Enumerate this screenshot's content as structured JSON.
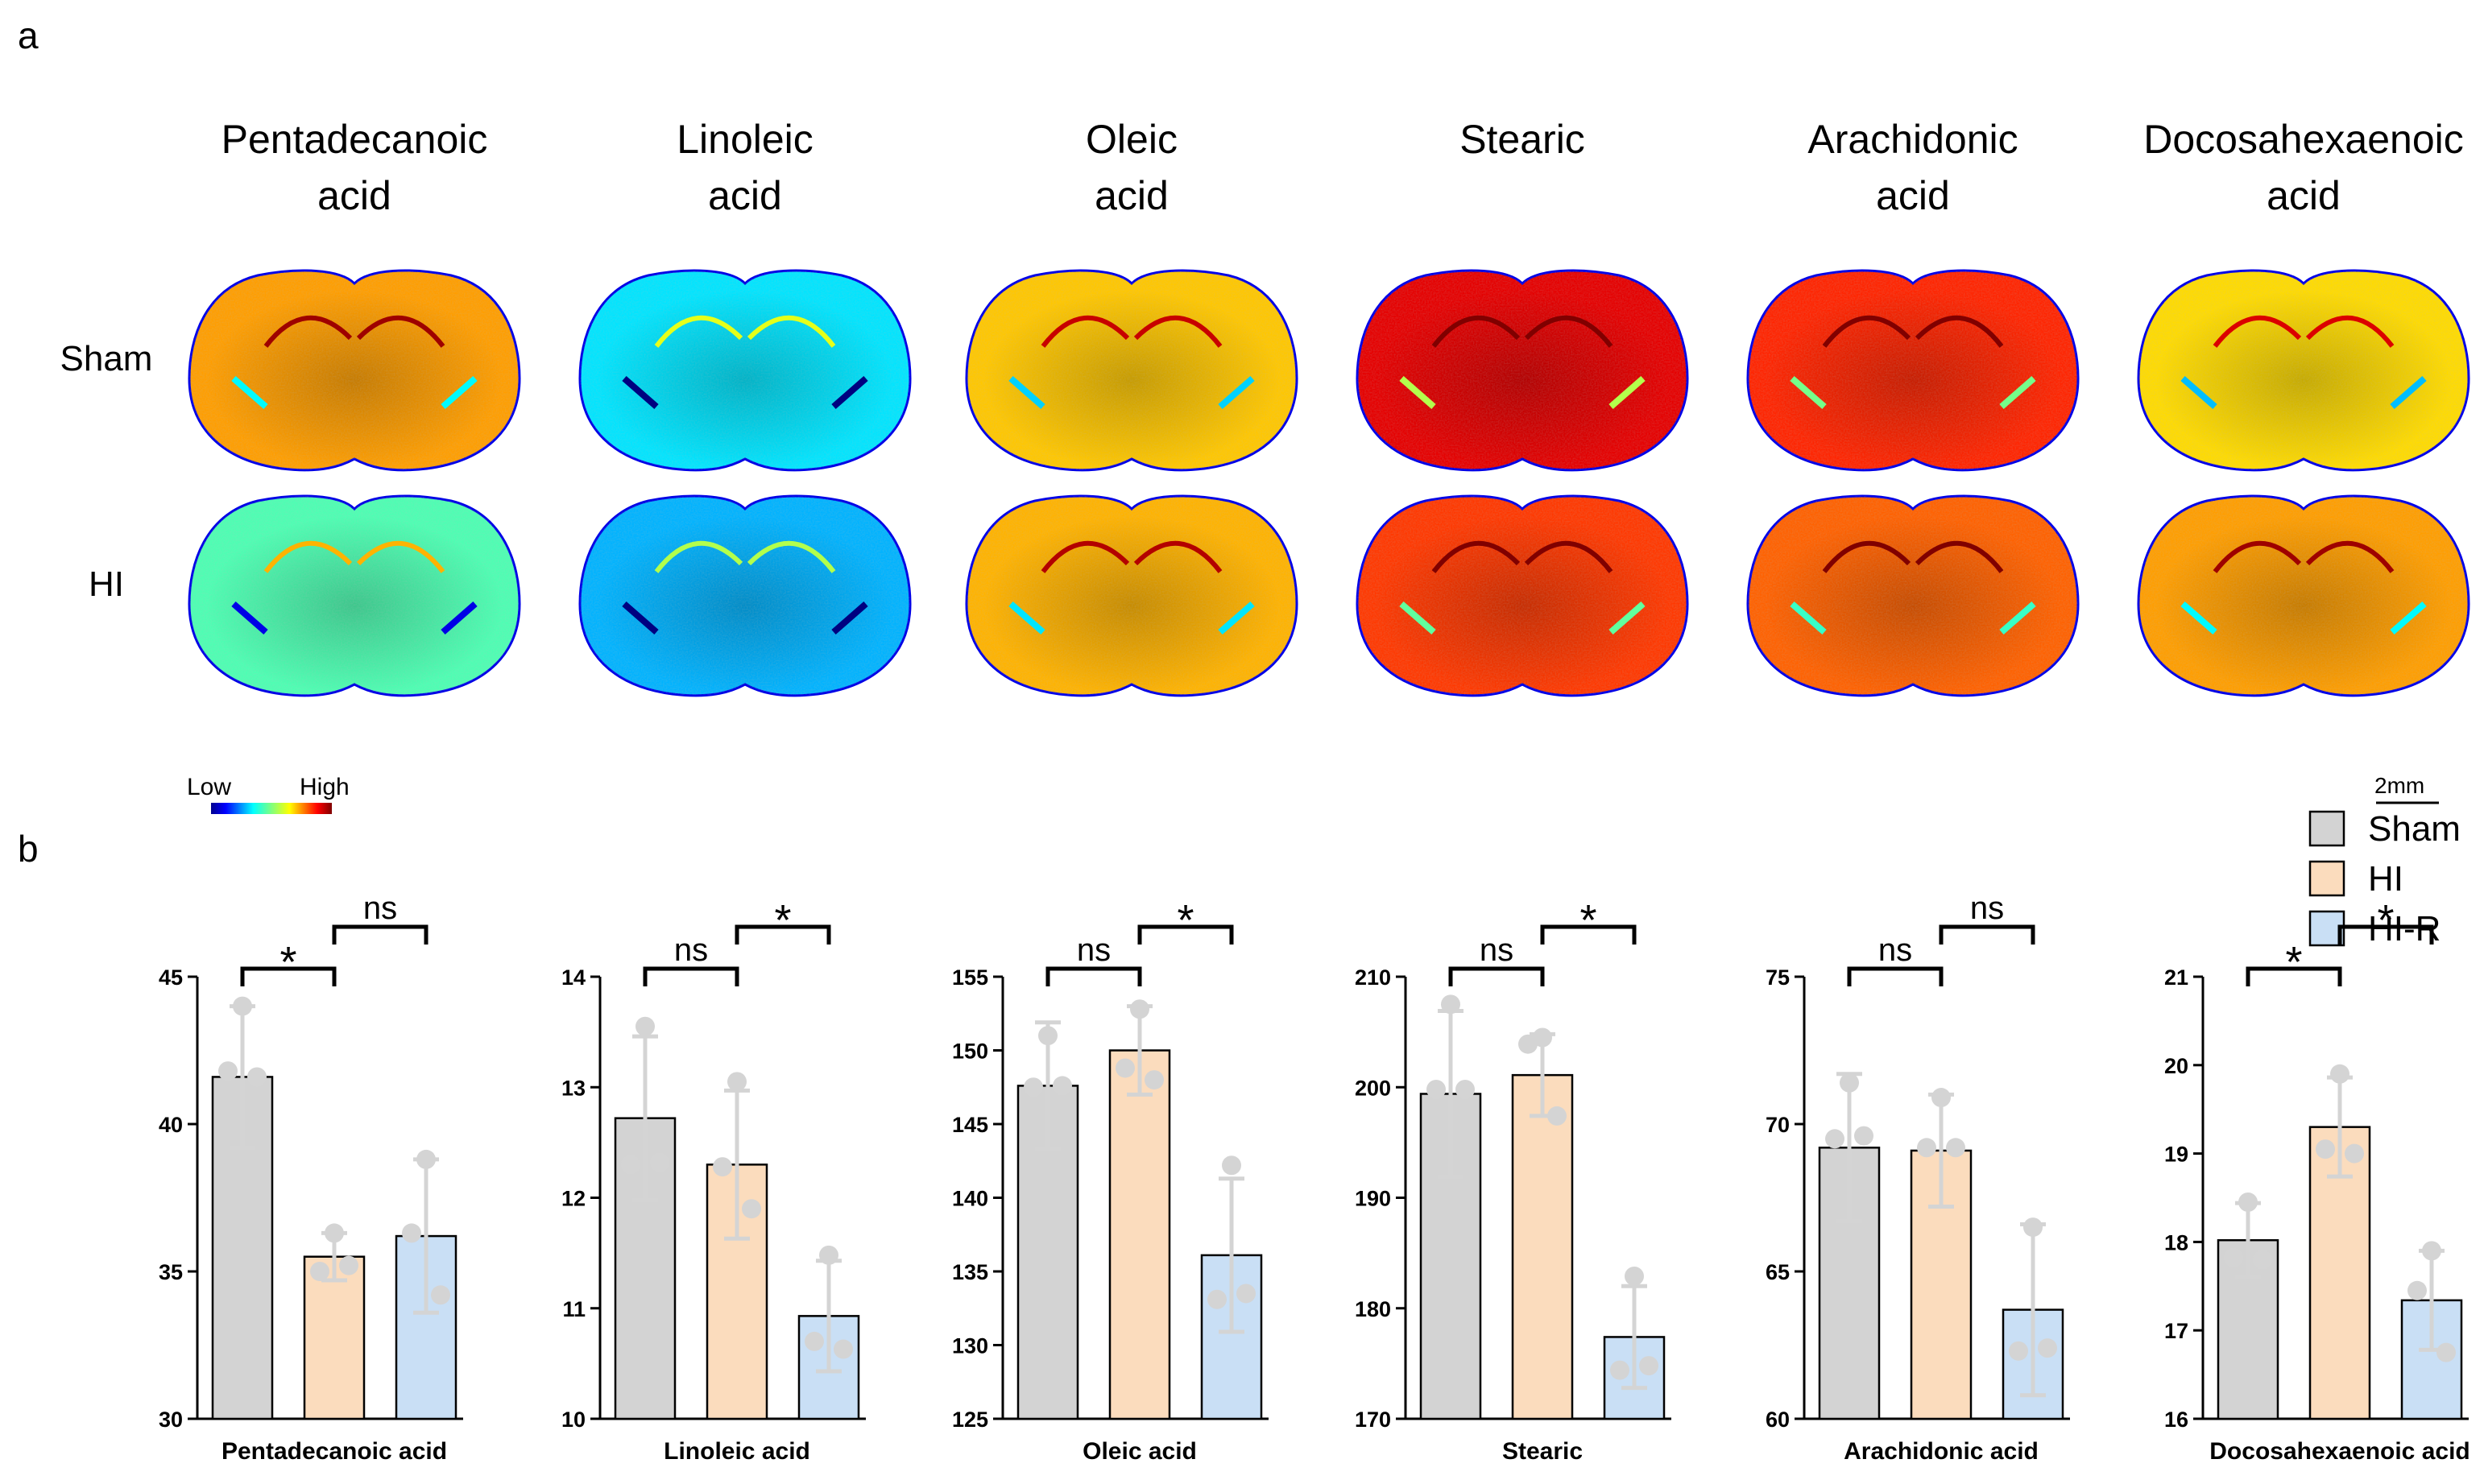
{
  "panel_labels": {
    "a": "a",
    "b": "b"
  },
  "imaging": {
    "columns": [
      {
        "line1": "Pentadecanoic",
        "line2": "acid"
      },
      {
        "line1": "Linoleic",
        "line2": "acid"
      },
      {
        "line1": "Oleic",
        "line2": "acid"
      },
      {
        "line1": "Stearic",
        "line2": ""
      },
      {
        "line1": "Arachidonic",
        "line2": "acid"
      },
      {
        "line1": "Docosahexaenoic",
        "line2": "acid"
      }
    ],
    "rows": [
      "Sham",
      "HI"
    ],
    "colorbar": {
      "low": "Low",
      "high": "High"
    },
    "scale_bar": "2mm",
    "intensity": {
      "Sham": [
        0.72,
        0.35,
        0.68,
        0.9,
        0.84,
        0.66
      ],
      "HI": [
        0.45,
        0.3,
        0.7,
        0.82,
        0.78,
        0.72
      ]
    }
  },
  "legend": [
    {
      "name": "Sham",
      "color": "#d3d3d3"
    },
    {
      "name": "HI",
      "color": "#fbdcbd"
    },
    {
      "name": "HI-R",
      "color": "#c9dff5"
    }
  ],
  "chart_data": [
    {
      "type": "bar",
      "xlabel": "Pentadecanoic acid",
      "ylim": [
        30,
        45
      ],
      "yticks": [
        30,
        35,
        40,
        45
      ],
      "categories": [
        "Sham",
        "HI",
        "HI-R"
      ],
      "values": [
        41.6,
        35.5,
        36.2
      ],
      "sd": [
        2.4,
        0.8,
        2.6
      ],
      "points": [
        [
          44.0,
          41.8,
          41.6
        ],
        [
          36.3,
          35.0,
          35.2
        ],
        [
          38.8,
          36.3,
          34.2
        ]
      ],
      "significance": [
        {
          "pair": [
            0,
            1
          ],
          "label": "*"
        },
        {
          "pair": [
            1,
            2
          ],
          "label": "ns"
        }
      ]
    },
    {
      "type": "bar",
      "xlabel": "Linoleic acid",
      "ylim": [
        10,
        14
      ],
      "yticks": [
        10,
        11,
        12,
        13,
        14
      ],
      "categories": [
        "Sham",
        "HI",
        "HI-R"
      ],
      "values": [
        12.72,
        12.3,
        10.93
      ],
      "sd": [
        0.74,
        0.67,
        0.5
      ],
      "points": [
        [
          13.55,
          12.3,
          12.32
        ],
        [
          13.05,
          12.28,
          11.9
        ],
        [
          11.48,
          10.7,
          10.63
        ]
      ],
      "significance": [
        {
          "pair": [
            0,
            1
          ],
          "label": "ns"
        },
        {
          "pair": [
            1,
            2
          ],
          "label": "*"
        }
      ]
    },
    {
      "type": "bar",
      "xlabel": "Oleic acid",
      "ylim": [
        125,
        155
      ],
      "yticks": [
        125,
        130,
        135,
        140,
        145,
        150,
        155
      ],
      "categories": [
        "Sham",
        "HI",
        "HI-R"
      ],
      "values": [
        147.6,
        150.0,
        136.1
      ],
      "sd": [
        4.3,
        3.0,
        5.2
      ],
      "points": [
        [
          151.0,
          147.5,
          147.6
        ],
        [
          152.8,
          148.8,
          148.0
        ],
        [
          142.2,
          133.1,
          133.5
        ]
      ],
      "significance": [
        {
          "pair": [
            0,
            1
          ],
          "label": "ns"
        },
        {
          "pair": [
            1,
            2
          ],
          "label": "*"
        }
      ]
    },
    {
      "type": "bar",
      "xlabel": "Stearic",
      "ylim": [
        170,
        210
      ],
      "yticks": [
        170,
        180,
        190,
        200,
        210
      ],
      "categories": [
        "Sham",
        "HI",
        "HI-R"
      ],
      "values": [
        199.4,
        201.1,
        177.4
      ],
      "sd": [
        7.5,
        3.7,
        4.6
      ],
      "points": [
        [
          207.5,
          199.8,
          199.8
        ],
        [
          204.5,
          203.9,
          197.4
        ],
        [
          182.9,
          174.4,
          174.8
        ]
      ],
      "significance": [
        {
          "pair": [
            0,
            1
          ],
          "label": "ns"
        },
        {
          "pair": [
            1,
            2
          ],
          "label": "*"
        }
      ]
    },
    {
      "type": "bar",
      "xlabel": "Arachidonic acid",
      "ylim": [
        60,
        75
      ],
      "yticks": [
        60,
        65,
        70,
        75
      ],
      "categories": [
        "Sham",
        "HI",
        "HI-R"
      ],
      "values": [
        69.2,
        69.1,
        63.7
      ],
      "sd": [
        2.5,
        1.9,
        2.9
      ],
      "points": [
        [
          71.4,
          69.5,
          69.6
        ],
        [
          70.9,
          69.2,
          69.2
        ],
        [
          66.5,
          62.3,
          62.4
        ]
      ],
      "significance": [
        {
          "pair": [
            0,
            1
          ],
          "label": "ns"
        },
        {
          "pair": [
            1,
            2
          ],
          "label": "ns"
        }
      ]
    },
    {
      "type": "bar",
      "xlabel": "Docosahexaenoic acid",
      "ylim": [
        16,
        21
      ],
      "yticks": [
        16,
        17,
        18,
        19,
        20,
        21
      ],
      "categories": [
        "Sham",
        "HI",
        "HI-R"
      ],
      "values": [
        18.02,
        19.3,
        17.34
      ],
      "sd": [
        0.42,
        0.56,
        0.56
      ],
      "points": [
        [
          18.45,
          17.82,
          17.8
        ],
        [
          19.9,
          19.05,
          19.0
        ],
        [
          17.9,
          17.45,
          16.75
        ]
      ],
      "significance": [
        {
          "pair": [
            0,
            1
          ],
          "label": "*"
        },
        {
          "pair": [
            1,
            2
          ],
          "label": "*"
        }
      ]
    }
  ]
}
